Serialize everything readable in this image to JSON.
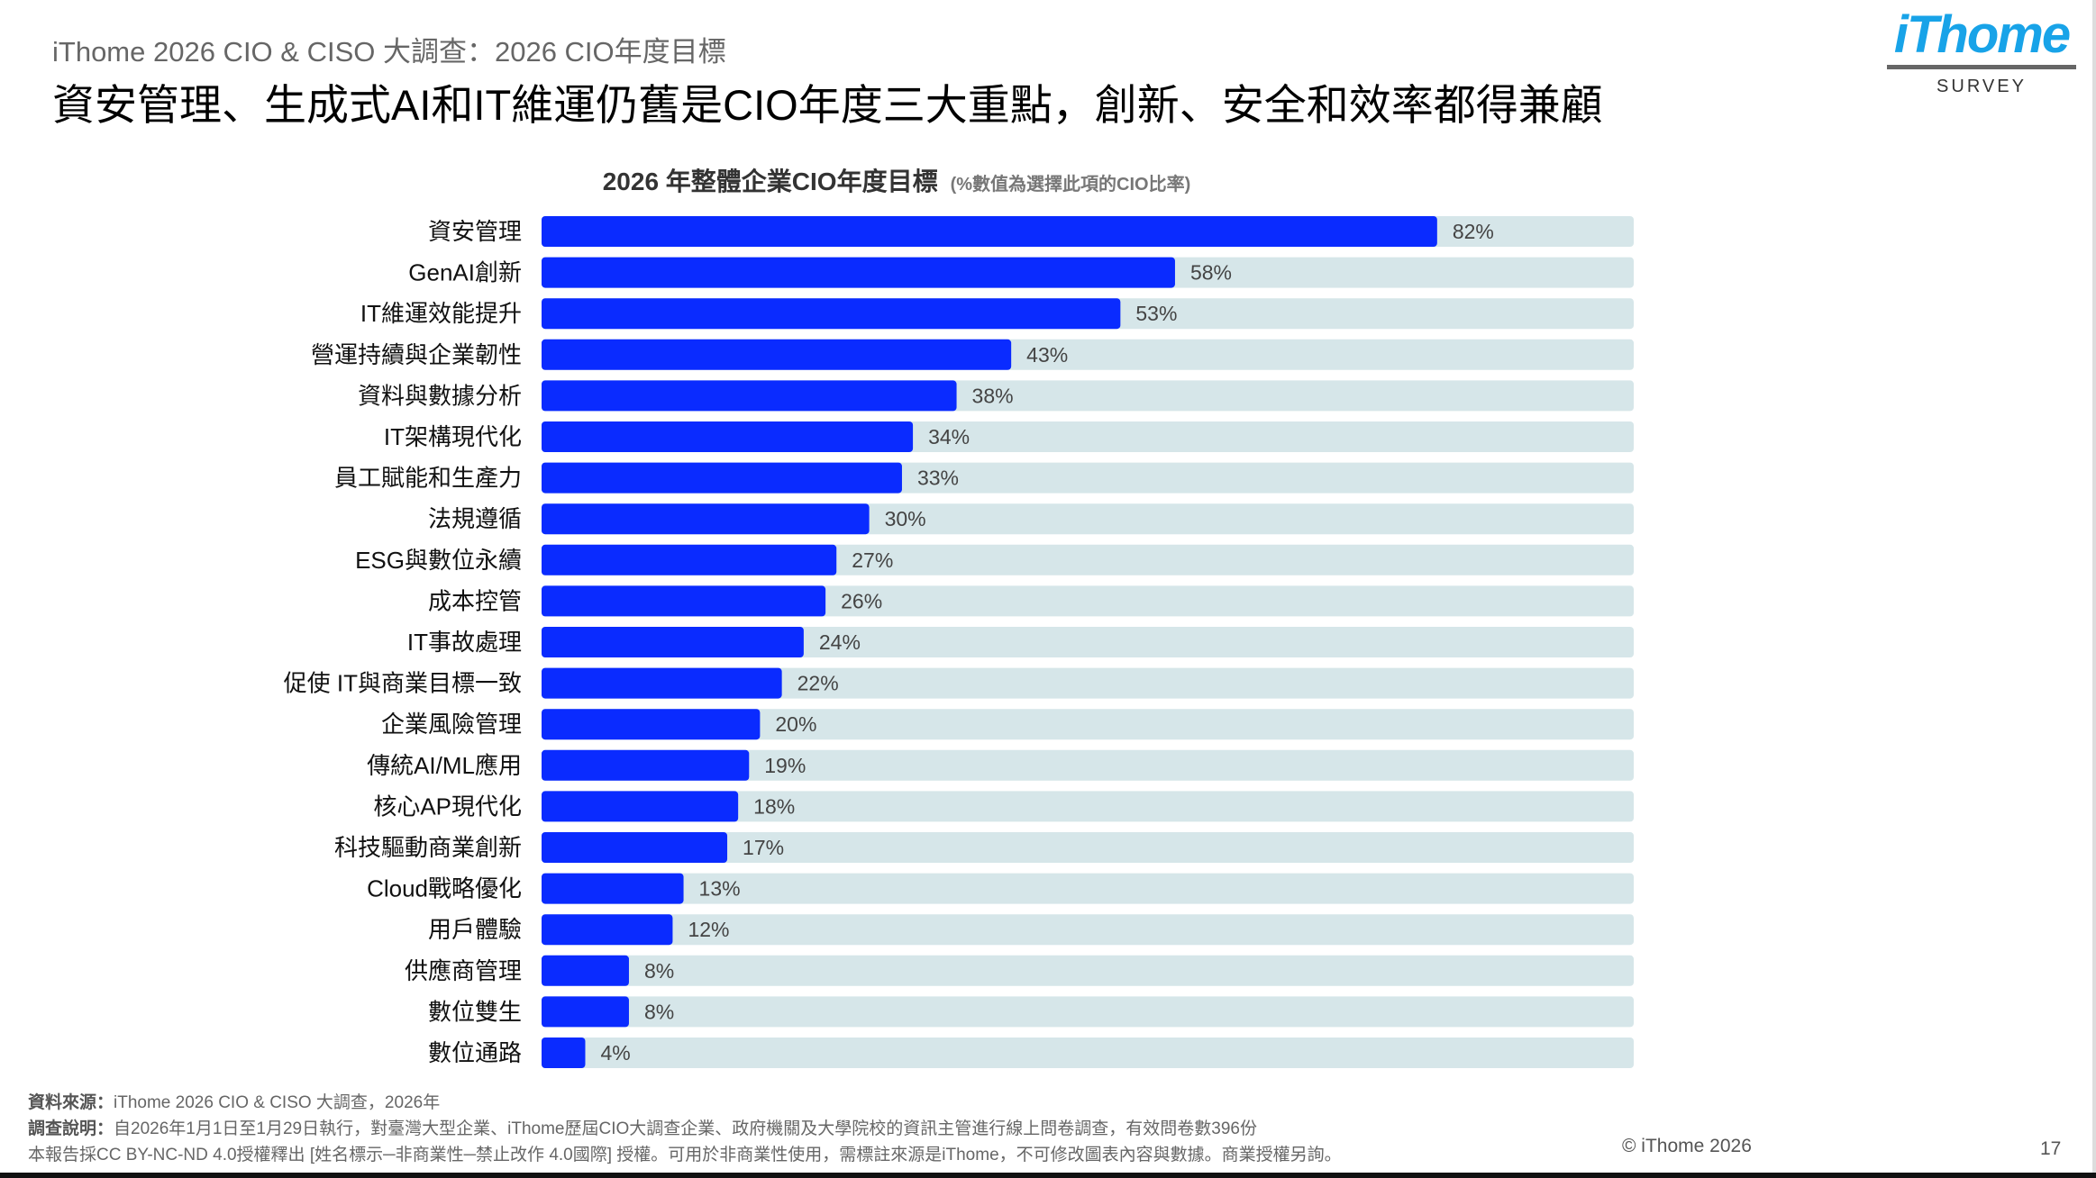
{
  "header": {
    "subtitle": "iThome 2026 CIO & CISO 大調查：2026 CIO年度目標",
    "title": "資安管理、生成式AI和IT維運仍舊是CIO年度三大重點，創新、安全和效率都得兼顧"
  },
  "logo": {
    "mark": "iThome",
    "sub": "SURVEY"
  },
  "colors": {
    "bar": "#0A2BFF",
    "track": "#D6E6E9",
    "value_text": "#444444",
    "label_text": "#111111"
  },
  "chart_data": {
    "type": "bar",
    "orientation": "horizontal",
    "title": "2026 年整體企業CIO年度目標",
    "note": "(%數值為選擇此項的CIO比率)",
    "xlim": [
      0,
      100
    ],
    "grid": false,
    "categories": [
      "資安管理",
      "GenAI創新",
      "IT維運效能提升",
      "營運持續與企業韌性",
      "資料與數據分析",
      "IT架構現代化",
      "員工賦能和生產力",
      "法規遵循",
      "ESG與數位永續",
      "成本控管",
      "IT事故處理",
      "促使 IT與商業目標一致",
      "企業風險管理",
      "傳統AI/ML應用",
      "核心AP現代化",
      "科技驅動商業創新",
      "Cloud戰略優化",
      "用戶體驗",
      "供應商管理",
      "數位雙生",
      "數位通路"
    ],
    "values": [
      82,
      58,
      53,
      43,
      38,
      34,
      33,
      30,
      27,
      26,
      24,
      22,
      20,
      19,
      18,
      17,
      13,
      12,
      8,
      8,
      4
    ],
    "value_labels": [
      "82%",
      "58%",
      "53%",
      "43%",
      "38%",
      "34%",
      "33%",
      "30%",
      "27%",
      "26%",
      "24%",
      "22%",
      "20%",
      "19%",
      "18%",
      "17%",
      "13%",
      "12%",
      "8%",
      "8%",
      "4%"
    ]
  },
  "footer": {
    "source_label": "資料來源：",
    "source": "iThome 2026 CIO & CISO 大調查，2026年",
    "method_label": "調查說明：",
    "method": "自2026年1月1日至1月29日執行，對臺灣大型企業、iThome歷屆CIO大調查企業、政府機關及大學院校的資訊主管進行線上問卷調查，有效問卷數396份",
    "license": "本報告採CC BY-NC-ND 4.0授權釋出 [姓名標示─非商業性─禁止改作 4.0國際] 授權。可用於非商業性使用，需標註來源是iThome，不可修改圖表內容與數據。商業授權另詢。",
    "copyright": "© iThome 2026",
    "page": "17"
  }
}
